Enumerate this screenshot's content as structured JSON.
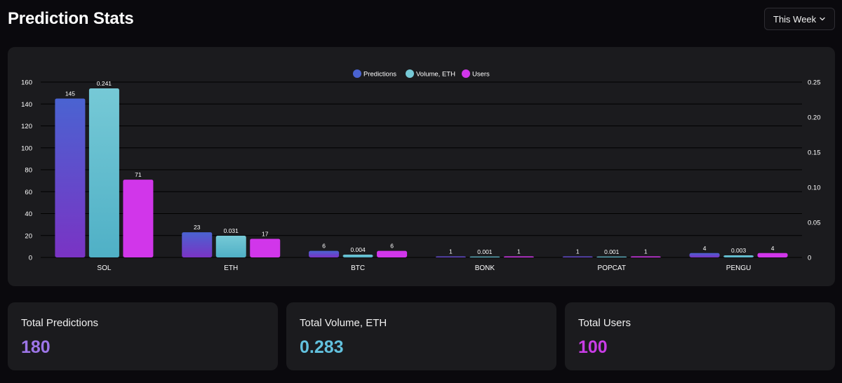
{
  "header": {
    "title": "Prediction Stats"
  },
  "period_select": {
    "value": "This Week"
  },
  "colors": {
    "predictions_top": "#4a63d1",
    "predictions_bottom": "#7a33c4",
    "volume_top": "#76c9d6",
    "volume_bottom": "#4fb0c6",
    "users": "#d136ea",
    "grid": "#000000"
  },
  "chart_data": {
    "type": "bar",
    "categories": [
      "SOL",
      "ETH",
      "BTC",
      "BONK",
      "POPCAT",
      "PENGU"
    ],
    "series": [
      {
        "name": "Predictions",
        "axis": "left",
        "values": [
          145,
          23,
          6,
          1,
          1,
          4
        ],
        "labels": [
          "145",
          "23",
          "6",
          "1",
          "1",
          "4"
        ]
      },
      {
        "name": "Volume, ETH",
        "axis": "right",
        "values": [
          0.241,
          0.031,
          0.004,
          0.001,
          0.001,
          0.003
        ],
        "labels": [
          "0.241",
          "0.031",
          "0.004",
          "0.001",
          "0.001",
          "0.003"
        ]
      },
      {
        "name": "Users",
        "axis": "left",
        "values": [
          71,
          17,
          6,
          1,
          1,
          4
        ],
        "labels": [
          "71",
          "17",
          "6",
          "1",
          "1",
          "4"
        ]
      }
    ],
    "y_left": {
      "min": 0,
      "max": 160,
      "ticks": [
        "0",
        "20",
        "40",
        "60",
        "80",
        "100",
        "120",
        "140",
        "160"
      ]
    },
    "y_right": {
      "min": 0,
      "max": 0.25,
      "ticks": [
        "0",
        "0.05",
        "0.10",
        "0.15",
        "0.20",
        "0.25"
      ]
    },
    "legend_position": "top-center",
    "grid": true
  },
  "stats": [
    {
      "label": "Total Predictions",
      "value": "180",
      "color": "#9d75e8"
    },
    {
      "label": "Total Volume, ETH",
      "value": "0.283",
      "color": "#62c1de"
    },
    {
      "label": "Total Users",
      "value": "100",
      "color": "#c93ce6"
    }
  ]
}
